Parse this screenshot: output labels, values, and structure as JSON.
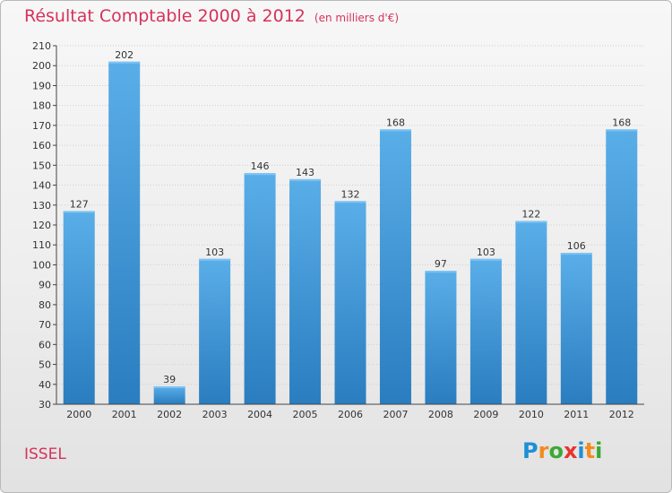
{
  "header": {
    "title": "Résultat Comptable 2000 à 2012",
    "unit": "(en milliers d'€)"
  },
  "footer": {
    "place": "ISSEL",
    "logo": "Proxiti",
    "logo_letters": [
      "P",
      "r",
      "o",
      "x",
      "i",
      "t",
      "i"
    ],
    "logo_colors": [
      "#1e8fd6",
      "#f28c1e",
      "#3aa935",
      "#e8342c",
      "#1e8fd6",
      "#f28c1e",
      "#3aa935"
    ]
  },
  "colors": {
    "title": "#d6325a",
    "bar_top": "#5aaee8",
    "bar_bottom": "#2a7dbf",
    "axis": "#444444",
    "grid": "#cfcfcf"
  },
  "chart_data": {
    "type": "bar",
    "title": "Résultat Comptable 2000 à 2012",
    "subtitle": "(en milliers d'€)",
    "xlabel": "",
    "ylabel": "",
    "categories": [
      "2000",
      "2001",
      "2002",
      "2003",
      "2004",
      "2005",
      "2006",
      "2007",
      "2008",
      "2009",
      "2010",
      "2011",
      "2012"
    ],
    "values": [
      127,
      202,
      39,
      103,
      146,
      143,
      132,
      168,
      97,
      103,
      122,
      106,
      168
    ],
    "value_labels": [
      "127",
      "202",
      "39",
      "103",
      "146",
      "143",
      "132",
      "168",
      "97",
      "103",
      "122",
      "106",
      "168"
    ],
    "ylim": [
      30,
      210
    ],
    "yticks": [
      30,
      40,
      50,
      60,
      70,
      80,
      90,
      100,
      110,
      120,
      130,
      140,
      150,
      160,
      170,
      180,
      190,
      200,
      210
    ],
    "grid": true,
    "legend": "none"
  }
}
